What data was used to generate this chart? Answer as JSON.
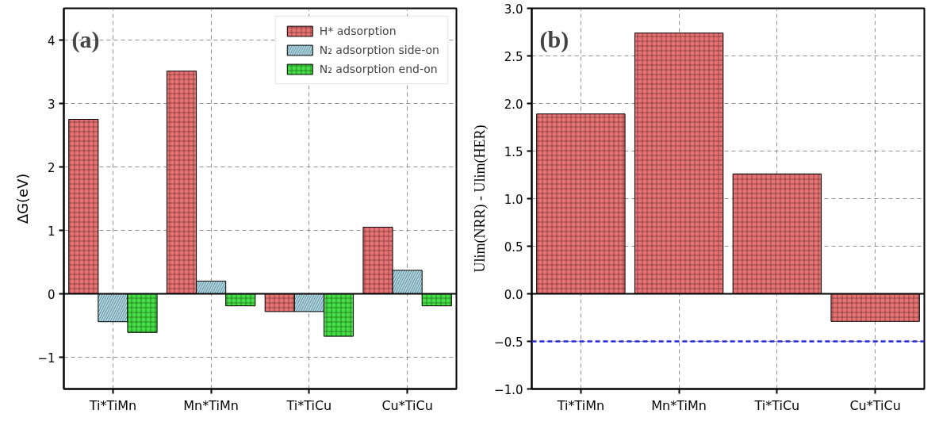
{
  "chart_data": [
    {
      "type": "bar",
      "categories": [
        "Ti*TiMn",
        "Mn*TiMn",
        "Ti*TiCu",
        "Cu*TiCu"
      ],
      "ylabel": "ΔG(eV)",
      "annotations": [
        "(a)"
      ],
      "series": [
        {
          "name": "H* adsorption",
          "color": "#e87272",
          "values": [
            2.75,
            3.51,
            -0.28,
            1.05
          ]
        },
        {
          "name": "N₂ adsorption side-on",
          "color": "#acd8e6",
          "values": [
            -0.44,
            0.2,
            -0.28,
            0.37
          ]
        },
        {
          "name": "N₂ adsorption end-on",
          "color": "#44dd44",
          "values": [
            -0.61,
            -0.19,
            -0.67,
            -0.19
          ]
        }
      ],
      "ylim": [
        -1.5,
        4.5
      ],
      "yticks": [
        {
          "value": -1,
          "label": "−1"
        },
        0,
        1,
        2,
        3,
        4
      ],
      "grid": true,
      "legend": "top right"
    },
    {
      "type": "bar",
      "categories": [
        "Ti*TiMn",
        "Mn*TiMn",
        "Ti*TiCu",
        "Cu*TiCu"
      ],
      "ylabel": "Ulim(NRR) - Ulim(HER)",
      "annotations": [
        "(b)"
      ],
      "series": [
        {
          "color": "#e87272",
          "values": [
            1.89,
            2.74,
            1.26,
            -0.29
          ]
        }
      ],
      "ylim": [
        -1.0,
        3.0
      ],
      "yticks": [
        {
          "value": -1,
          "label": "−1.0"
        },
        {
          "value": -0.5,
          "label": "−0.5"
        },
        {
          "value": 0,
          "label": "0.0"
        },
        {
          "value": 0.5,
          "label": "0.5"
        },
        {
          "value": 1,
          "label": "1.0"
        },
        {
          "value": 1.5,
          "label": "1.5"
        },
        {
          "value": 2,
          "label": "2.0"
        },
        {
          "value": 2.5,
          "label": "2.5"
        },
        {
          "value": 3,
          "label": "3.0"
        }
      ],
      "ref_lines": [
        {
          "axis": "y",
          "value": -0.5,
          "color": "#2828d8",
          "line_style": "dashed"
        }
      ],
      "grid": true
    }
  ]
}
